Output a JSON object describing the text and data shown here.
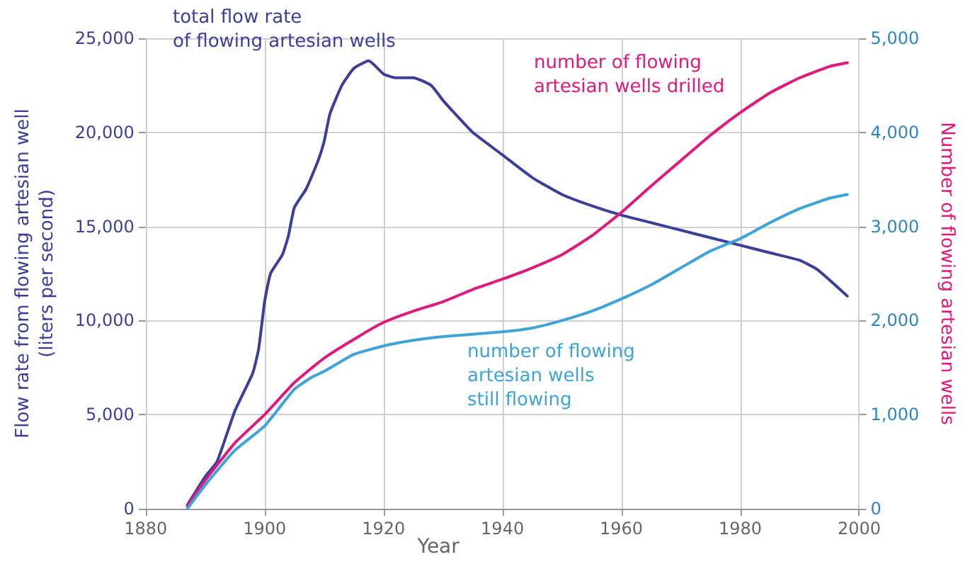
{
  "chart_data": {
    "type": "line",
    "xlabel": "Year",
    "ylabel": "Flow rate from flowing artesian well\n(liters per second)",
    "y2label": "Number of flowing artesian wells",
    "xlim": [
      1880,
      2000
    ],
    "xticks": [
      1880,
      1900,
      1920,
      1940,
      1960,
      1980,
      2000
    ],
    "ylim": [
      0,
      25000
    ],
    "yticks": [
      0,
      {
        "value": 5000,
        "label": "5,000"
      },
      {
        "value": 10000,
        "label": "10,000"
      },
      {
        "value": 15000,
        "label": "15,000"
      },
      {
        "value": 20000,
        "label": "20,000"
      },
      {
        "value": 25000,
        "label": "25,000"
      }
    ],
    "y2lim": [
      0,
      5000
    ],
    "y2ticks": [
      0,
      {
        "value": 1000,
        "label": "1,000"
      },
      {
        "value": 2000,
        "label": "2,000"
      },
      {
        "value": 3000,
        "label": "3,000"
      },
      {
        "value": 4000,
        "label": "4,000"
      },
      {
        "value": 5000,
        "label": "5,000"
      }
    ],
    "grid": true,
    "legend": false,
    "marker": "none",
    "line_style": "solid",
    "series": [
      {
        "name": "total flow rate\nof flowing artesian wells",
        "color": "#3b3f99",
        "x": [
          1887,
          1890,
          1892,
          1895,
          1898,
          1899,
          1900,
          1901,
          1903,
          1904,
          1905,
          1907,
          1909,
          1910,
          1911,
          1913,
          1915,
          1917.5,
          1920,
          1922,
          1925,
          1928,
          1930,
          1932,
          1935,
          1940,
          1945,
          1950,
          1955,
          1960,
          1965,
          1970,
          1975,
          1980,
          1985,
          1990,
          1993,
          1998
        ],
        "values": [
          200,
          1700,
          2500,
          5200,
          7200,
          8500,
          11000,
          12500,
          13500,
          14500,
          16000,
          17000,
          18500,
          19500,
          21000,
          22500,
          23400,
          23800,
          23100,
          22900,
          22900,
          22500,
          21700,
          21000,
          20000,
          18800,
          17600,
          16700,
          16100,
          15600,
          15200,
          14800,
          14400,
          14000,
          13600,
          13200,
          12700,
          11300
        ]
      },
      {
        "name": "number of flowing\nartesian wells drilled",
        "color": "#e0197d",
        "axis": "y2",
        "x": [
          1887,
          1890,
          1895,
          1900,
          1905,
          1910,
          1915,
          1920,
          1925,
          1930,
          1935,
          1940,
          1945,
          1950,
          1955,
          1960,
          1965,
          1970,
          1975,
          1980,
          1985,
          1990,
          1995,
          1998
        ],
        "values": [
          30,
          300,
          700,
          1000,
          1340,
          1600,
          1800,
          1980,
          2100,
          2200,
          2330,
          2440,
          2560,
          2700,
          2900,
          3150,
          3430,
          3700,
          3970,
          4210,
          4420,
          4580,
          4700,
          4740
        ]
      },
      {
        "name": "number of flowing\nartesian wells\nstill flowing",
        "color": "#3ea3d8",
        "axis": "y2",
        "x": [
          1887,
          1890,
          1895,
          1900,
          1905,
          1908,
          1910,
          1915,
          1920,
          1925,
          1930,
          1940,
          1945,
          1950,
          1955,
          1960,
          1965,
          1970,
          1975,
          1980,
          1985,
          1990,
          1995,
          1998
        ],
        "values": [
          0,
          250,
          620,
          880,
          1270,
          1400,
          1460,
          1640,
          1730,
          1790,
          1830,
          1880,
          1920,
          2000,
          2100,
          2230,
          2380,
          2560,
          2740,
          2870,
          3040,
          3190,
          3300,
          3340
        ]
      }
    ]
  }
}
